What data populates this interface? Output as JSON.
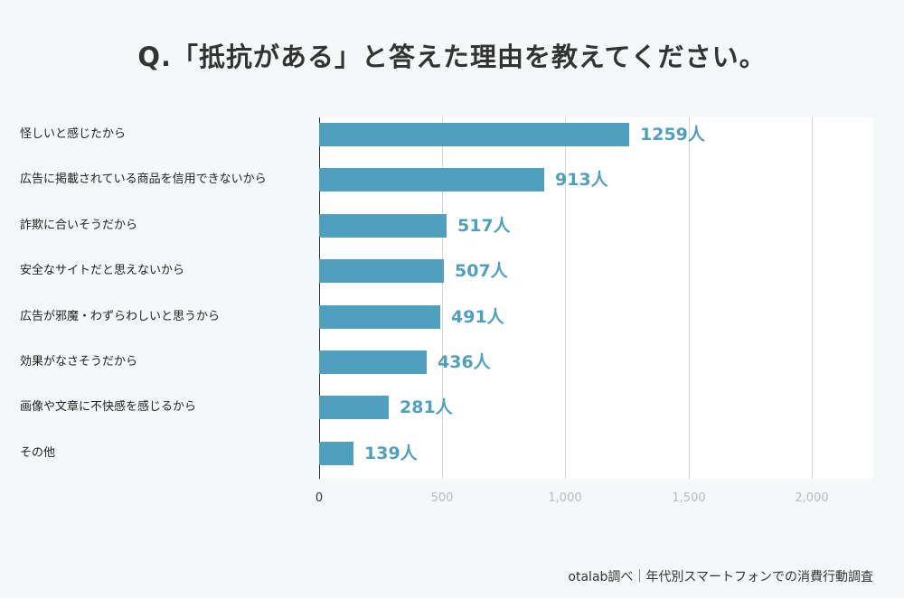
{
  "chart_data": {
    "type": "bar",
    "orientation": "horizontal",
    "title": "Q.「抵抗がある」と答えた理由を教えてください。",
    "categories": [
      "怪しいと感じたから",
      "広告に掲載されている商品を信用できないから",
      "詐欺に合いそうだから",
      "安全なサイトだと思えないから",
      "広告が邪魔・わずらわしいと思うから",
      "効果がなさそうだから",
      "画像や文章に不快感を感じるから",
      "その他"
    ],
    "values": [
      1259,
      913,
      517,
      507,
      491,
      436,
      281,
      139
    ],
    "value_labels": [
      "1259人",
      "913人",
      "517人",
      "507人",
      "491人",
      "436人",
      "281人",
      "139人"
    ],
    "xlim": [
      0,
      2250
    ],
    "xticks": [
      0,
      500,
      1000,
      1500,
      2000
    ],
    "xtick_labels": [
      "0",
      "500",
      "1,000",
      "1,500",
      "2,000"
    ],
    "xlabel": "",
    "ylabel": "",
    "grid": true,
    "bar_color": "#4f9fbf"
  },
  "footer": "otalab調べ｜年代別スマートフォンでの消費行動調査"
}
